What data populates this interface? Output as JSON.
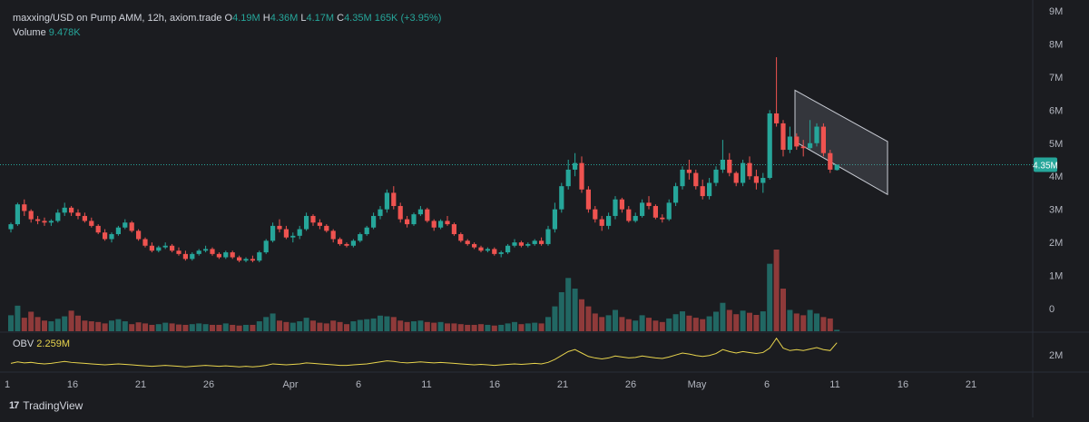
{
  "legend": {
    "pair": "maxxing/USD on Pump AMM, 12h, axiom.trade",
    "o_label": "O",
    "o_value": "4.19M",
    "h_label": "H",
    "h_value": "4.36M",
    "l_label": "L",
    "l_value": "4.17M",
    "c_label": "C",
    "c_value": "4.35M",
    "change": "165K (+3.95%)",
    "volume_label": "Volume",
    "volume_value": "9.478K"
  },
  "price_badge": "4.35M",
  "obv": {
    "label": "OBV",
    "value": "2.259M",
    "axis_tick": "2M"
  },
  "brand": "TradingView",
  "colors": {
    "up": "#26a69a",
    "down": "#ef5350",
    "obv": "#e8d44d",
    "background": "#1b1c20"
  },
  "chart_data": {
    "type": "candlestick",
    "interval": "12h",
    "y_ticks": [
      "9M",
      "8M",
      "7M",
      "6M",
      "5M",
      "4M",
      "3M",
      "2M",
      "1M",
      "0"
    ],
    "ylim": [
      0,
      9
    ],
    "y_unit": "M",
    "x_ticks": [
      "1",
      "16",
      "21",
      "26",
      "Apr",
      "6",
      "11",
      "16",
      "21",
      "26",
      "May",
      "6",
      "11",
      "16",
      "21"
    ],
    "last_close": 4.35,
    "candles": [
      [
        2.4,
        2.6,
        2.3,
        2.55
      ],
      [
        2.55,
        3.2,
        2.5,
        3.15
      ],
      [
        3.15,
        3.3,
        2.8,
        2.95
      ],
      [
        2.95,
        3.0,
        2.6,
        2.7
      ],
      [
        2.7,
        2.8,
        2.55,
        2.65
      ],
      [
        2.65,
        2.75,
        2.5,
        2.6
      ],
      [
        2.6,
        2.7,
        2.5,
        2.65
      ],
      [
        2.65,
        3.0,
        2.6,
        2.9
      ],
      [
        2.9,
        3.2,
        2.8,
        3.05
      ],
      [
        3.05,
        3.1,
        2.8,
        2.9
      ],
      [
        2.9,
        3.0,
        2.7,
        2.8
      ],
      [
        2.8,
        2.9,
        2.6,
        2.65
      ],
      [
        2.65,
        2.75,
        2.45,
        2.5
      ],
      [
        2.5,
        2.55,
        2.25,
        2.3
      ],
      [
        2.3,
        2.4,
        2.05,
        2.1
      ],
      [
        2.1,
        2.3,
        2.0,
        2.25
      ],
      [
        2.25,
        2.5,
        2.2,
        2.45
      ],
      [
        2.45,
        2.7,
        2.4,
        2.6
      ],
      [
        2.6,
        2.65,
        2.3,
        2.35
      ],
      [
        2.35,
        2.4,
        2.05,
        2.1
      ],
      [
        2.1,
        2.15,
        1.85,
        1.9
      ],
      [
        1.9,
        2.0,
        1.7,
        1.75
      ],
      [
        1.75,
        1.9,
        1.7,
        1.85
      ],
      [
        1.85,
        2.0,
        1.8,
        1.9
      ],
      [
        1.9,
        1.95,
        1.7,
        1.75
      ],
      [
        1.75,
        1.85,
        1.6,
        1.65
      ],
      [
        1.65,
        1.75,
        1.45,
        1.5
      ],
      [
        1.5,
        1.7,
        1.45,
        1.65
      ],
      [
        1.65,
        1.8,
        1.6,
        1.75
      ],
      [
        1.75,
        1.9,
        1.7,
        1.8
      ],
      [
        1.8,
        1.85,
        1.6,
        1.65
      ],
      [
        1.65,
        1.7,
        1.5,
        1.55
      ],
      [
        1.55,
        1.75,
        1.5,
        1.7
      ],
      [
        1.7,
        1.75,
        1.5,
        1.55
      ],
      [
        1.55,
        1.6,
        1.4,
        1.45
      ],
      [
        1.45,
        1.55,
        1.4,
        1.5
      ],
      [
        1.5,
        1.6,
        1.4,
        1.45
      ],
      [
        1.45,
        1.75,
        1.4,
        1.7
      ],
      [
        1.7,
        2.1,
        1.65,
        2.05
      ],
      [
        2.05,
        2.6,
        2.0,
        2.5
      ],
      [
        2.5,
        2.7,
        2.3,
        2.4
      ],
      [
        2.4,
        2.5,
        2.1,
        2.15
      ],
      [
        2.15,
        2.3,
        2.0,
        2.2
      ],
      [
        2.2,
        2.5,
        2.1,
        2.4
      ],
      [
        2.4,
        2.9,
        2.35,
        2.8
      ],
      [
        2.8,
        2.85,
        2.5,
        2.6
      ],
      [
        2.6,
        2.7,
        2.4,
        2.5
      ],
      [
        2.5,
        2.55,
        2.3,
        2.35
      ],
      [
        2.35,
        2.4,
        2.0,
        2.1
      ],
      [
        2.1,
        2.15,
        1.9,
        1.95
      ],
      [
        1.95,
        2.0,
        1.85,
        1.9
      ],
      [
        1.9,
        2.1,
        1.85,
        2.05
      ],
      [
        2.05,
        2.3,
        2.0,
        2.25
      ],
      [
        2.25,
        2.5,
        2.2,
        2.45
      ],
      [
        2.45,
        2.9,
        2.4,
        2.8
      ],
      [
        2.8,
        3.1,
        2.7,
        3.0
      ],
      [
        3.0,
        3.6,
        2.9,
        3.5
      ],
      [
        3.5,
        3.7,
        3.0,
        3.1
      ],
      [
        3.1,
        3.2,
        2.6,
        2.7
      ],
      [
        2.7,
        2.8,
        2.45,
        2.55
      ],
      [
        2.55,
        2.9,
        2.5,
        2.85
      ],
      [
        2.85,
        3.1,
        2.8,
        3.0
      ],
      [
        3.0,
        3.05,
        2.6,
        2.65
      ],
      [
        2.65,
        2.7,
        2.35,
        2.45
      ],
      [
        2.45,
        2.7,
        2.4,
        2.65
      ],
      [
        2.65,
        2.8,
        2.5,
        2.55
      ],
      [
        2.55,
        2.6,
        2.2,
        2.25
      ],
      [
        2.25,
        2.3,
        2.0,
        2.05
      ],
      [
        2.05,
        2.1,
        1.9,
        1.95
      ],
      [
        1.95,
        2.0,
        1.8,
        1.85
      ],
      [
        1.85,
        1.9,
        1.7,
        1.75
      ],
      [
        1.75,
        1.85,
        1.7,
        1.8
      ],
      [
        1.8,
        1.85,
        1.6,
        1.65
      ],
      [
        1.65,
        1.75,
        1.55,
        1.7
      ],
      [
        1.7,
        1.95,
        1.65,
        1.9
      ],
      [
        1.9,
        2.1,
        1.85,
        2.0
      ],
      [
        2.0,
        2.05,
        1.85,
        1.9
      ],
      [
        1.9,
        2.0,
        1.85,
        1.95
      ],
      [
        1.95,
        2.1,
        1.9,
        2.05
      ],
      [
        2.05,
        2.15,
        1.9,
        1.95
      ],
      [
        1.95,
        2.5,
        1.9,
        2.4
      ],
      [
        2.4,
        3.2,
        2.3,
        3.0
      ],
      [
        3.0,
        3.8,
        2.9,
        3.7
      ],
      [
        3.7,
        4.5,
        3.6,
        4.2
      ],
      [
        4.2,
        4.7,
        4.0,
        4.4
      ],
      [
        4.4,
        4.6,
        3.5,
        3.6
      ],
      [
        3.6,
        3.7,
        2.9,
        3.0
      ],
      [
        3.0,
        3.1,
        2.6,
        2.7
      ],
      [
        2.7,
        2.8,
        2.35,
        2.5
      ],
      [
        2.5,
        2.9,
        2.4,
        2.8
      ],
      [
        2.8,
        3.4,
        2.7,
        3.3
      ],
      [
        3.3,
        3.35,
        2.9,
        3.0
      ],
      [
        3.0,
        3.1,
        2.6,
        2.65
      ],
      [
        2.65,
        2.9,
        2.6,
        2.8
      ],
      [
        2.8,
        3.3,
        2.75,
        3.2
      ],
      [
        3.2,
        3.4,
        3.0,
        3.1
      ],
      [
        3.1,
        3.15,
        2.7,
        2.75
      ],
      [
        2.75,
        2.85,
        2.6,
        2.7
      ],
      [
        2.7,
        3.3,
        2.65,
        3.2
      ],
      [
        3.2,
        3.8,
        3.1,
        3.7
      ],
      [
        3.7,
        4.3,
        3.6,
        4.2
      ],
      [
        4.2,
        4.5,
        3.9,
        4.1
      ],
      [
        4.1,
        4.2,
        3.6,
        3.7
      ],
      [
        3.7,
        3.9,
        3.3,
        3.4
      ],
      [
        3.4,
        3.95,
        3.3,
        3.8
      ],
      [
        3.8,
        4.3,
        3.7,
        4.2
      ],
      [
        4.2,
        5.1,
        4.1,
        4.5
      ],
      [
        4.5,
        4.7,
        4.0,
        4.1
      ],
      [
        4.1,
        4.15,
        3.7,
        3.8
      ],
      [
        3.8,
        4.5,
        3.7,
        4.4
      ],
      [
        4.4,
        4.6,
        3.9,
        4.0
      ],
      [
        4.0,
        4.2,
        3.6,
        3.8
      ],
      [
        3.8,
        4.1,
        3.5,
        3.95
      ],
      [
        3.95,
        6.0,
        3.9,
        5.9
      ],
      [
        5.9,
        7.6,
        5.5,
        5.6
      ],
      [
        5.6,
        5.7,
        4.6,
        4.8
      ],
      [
        4.8,
        5.5,
        4.7,
        5.2
      ],
      [
        5.2,
        5.3,
        4.8,
        4.9
      ],
      [
        4.9,
        5.1,
        4.6,
        4.85
      ],
      [
        4.85,
        5.7,
        4.8,
        5.0
      ],
      [
        5.0,
        5.6,
        4.9,
        5.5
      ],
      [
        5.5,
        5.6,
        4.6,
        4.7
      ],
      [
        4.7,
        4.8,
        4.1,
        4.2
      ],
      [
        4.19,
        4.36,
        4.17,
        4.35
      ]
    ],
    "volume": [
      45,
      72,
      38,
      55,
      40,
      30,
      28,
      35,
      42,
      58,
      44,
      30,
      28,
      26,
      22,
      30,
      34,
      28,
      20,
      25,
      22,
      18,
      20,
      24,
      22,
      19,
      18,
      20,
      22,
      20,
      18,
      18,
      22,
      18,
      16,
      18,
      18,
      28,
      40,
      50,
      30,
      26,
      24,
      28,
      38,
      30,
      24,
      22,
      30,
      26,
      20,
      28,
      32,
      34,
      36,
      44,
      42,
      40,
      30,
      26,
      28,
      30,
      26,
      24,
      26,
      22,
      22,
      20,
      18,
      18,
      20,
      18,
      16,
      18,
      22,
      26,
      20,
      22,
      24,
      22,
      40,
      70,
      110,
      150,
      120,
      90,
      70,
      50,
      40,
      45,
      60,
      40,
      34,
      30,
      45,
      38,
      30,
      26,
      36,
      48,
      56,
      44,
      38,
      34,
      42,
      55,
      80,
      60,
      48,
      58,
      52,
      46,
      56,
      190,
      230,
      120,
      60,
      50,
      45,
      60,
      50,
      40,
      36,
      4
    ],
    "obv": [
      1.84,
      1.87,
      1.85,
      1.86,
      1.84,
      1.83,
      1.84,
      1.86,
      1.88,
      1.86,
      1.85,
      1.84,
      1.83,
      1.82,
      1.81,
      1.82,
      1.83,
      1.82,
      1.81,
      1.8,
      1.79,
      1.78,
      1.79,
      1.8,
      1.79,
      1.78,
      1.77,
      1.78,
      1.79,
      1.8,
      1.79,
      1.78,
      1.79,
      1.78,
      1.77,
      1.78,
      1.77,
      1.78,
      1.8,
      1.83,
      1.82,
      1.81,
      1.82,
      1.83,
      1.85,
      1.84,
      1.83,
      1.82,
      1.81,
      1.8,
      1.8,
      1.81,
      1.82,
      1.83,
      1.85,
      1.87,
      1.89,
      1.88,
      1.86,
      1.85,
      1.86,
      1.87,
      1.86,
      1.85,
      1.86,
      1.85,
      1.84,
      1.83,
      1.82,
      1.81,
      1.82,
      1.81,
      1.8,
      1.81,
      1.82,
      1.83,
      1.82,
      1.83,
      1.84,
      1.83,
      1.86,
      1.92,
      2.0,
      2.08,
      2.12,
      2.05,
      1.98,
      1.95,
      1.93,
      1.95,
      1.99,
      1.97,
      1.95,
      1.96,
      1.99,
      1.97,
      1.95,
      1.94,
      1.97,
      2.01,
      2.05,
      2.03,
      2.0,
      1.98,
      2.0,
      2.04,
      2.12,
      2.08,
      2.05,
      2.08,
      2.06,
      2.04,
      2.06,
      2.15,
      2.35,
      2.15,
      2.1,
      2.12,
      2.1,
      2.13,
      2.16,
      2.12,
      2.1,
      2.259
    ]
  }
}
